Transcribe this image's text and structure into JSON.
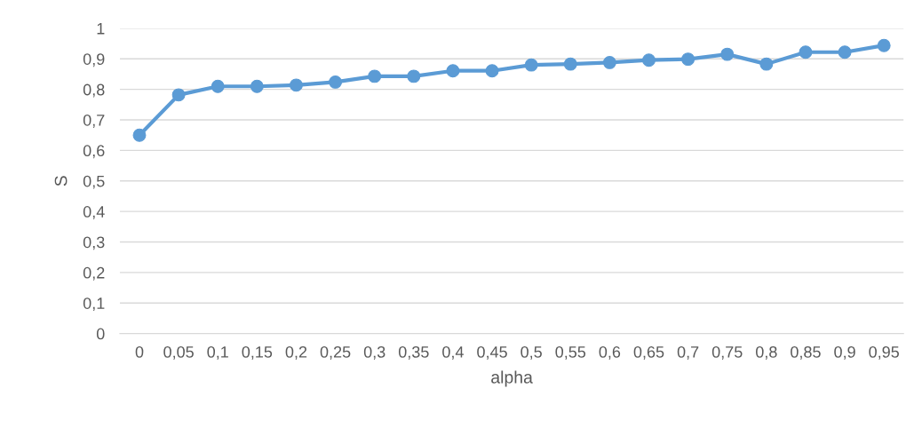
{
  "chart_data": {
    "type": "line",
    "xlabel": "alpha",
    "ylabel": "S",
    "categories": [
      "0",
      "0,05",
      "0,1",
      "0,15",
      "0,2",
      "0,25",
      "0,3",
      "0,35",
      "0,4",
      "0,45",
      "0,5",
      "0,55",
      "0,6",
      "0,65",
      "0,7",
      "0,75",
      "0,8",
      "0,85",
      "0,9",
      "0,95"
    ],
    "series": [
      {
        "color": "#5b9bd5",
        "values": [
          0.65,
          0.782,
          0.81,
          0.81,
          0.814,
          0.824,
          0.843,
          0.843,
          0.861,
          0.861,
          0.88,
          0.883,
          0.888,
          0.896,
          0.899,
          0.915,
          0.883,
          0.922,
          0.922,
          0.944
        ]
      }
    ],
    "ylim": [
      0,
      1
    ],
    "yticks": [
      0,
      {
        "value": 0.1,
        "label": "0,1"
      },
      {
        "value": 0.2,
        "label": "0,2"
      },
      {
        "value": 0.3,
        "label": "0,3"
      },
      {
        "value": 0.4,
        "label": "0,4"
      },
      {
        "value": 0.5,
        "label": "0,5"
      },
      {
        "value": 0.6,
        "label": "0,6"
      },
      {
        "value": 0.7,
        "label": "0,7"
      },
      {
        "value": 0.8,
        "label": "0,8"
      },
      {
        "value": 0.9,
        "label": "0,9"
      },
      1
    ],
    "grid": "y",
    "marker": "circle",
    "line_style": "solid",
    "legend": false
  }
}
